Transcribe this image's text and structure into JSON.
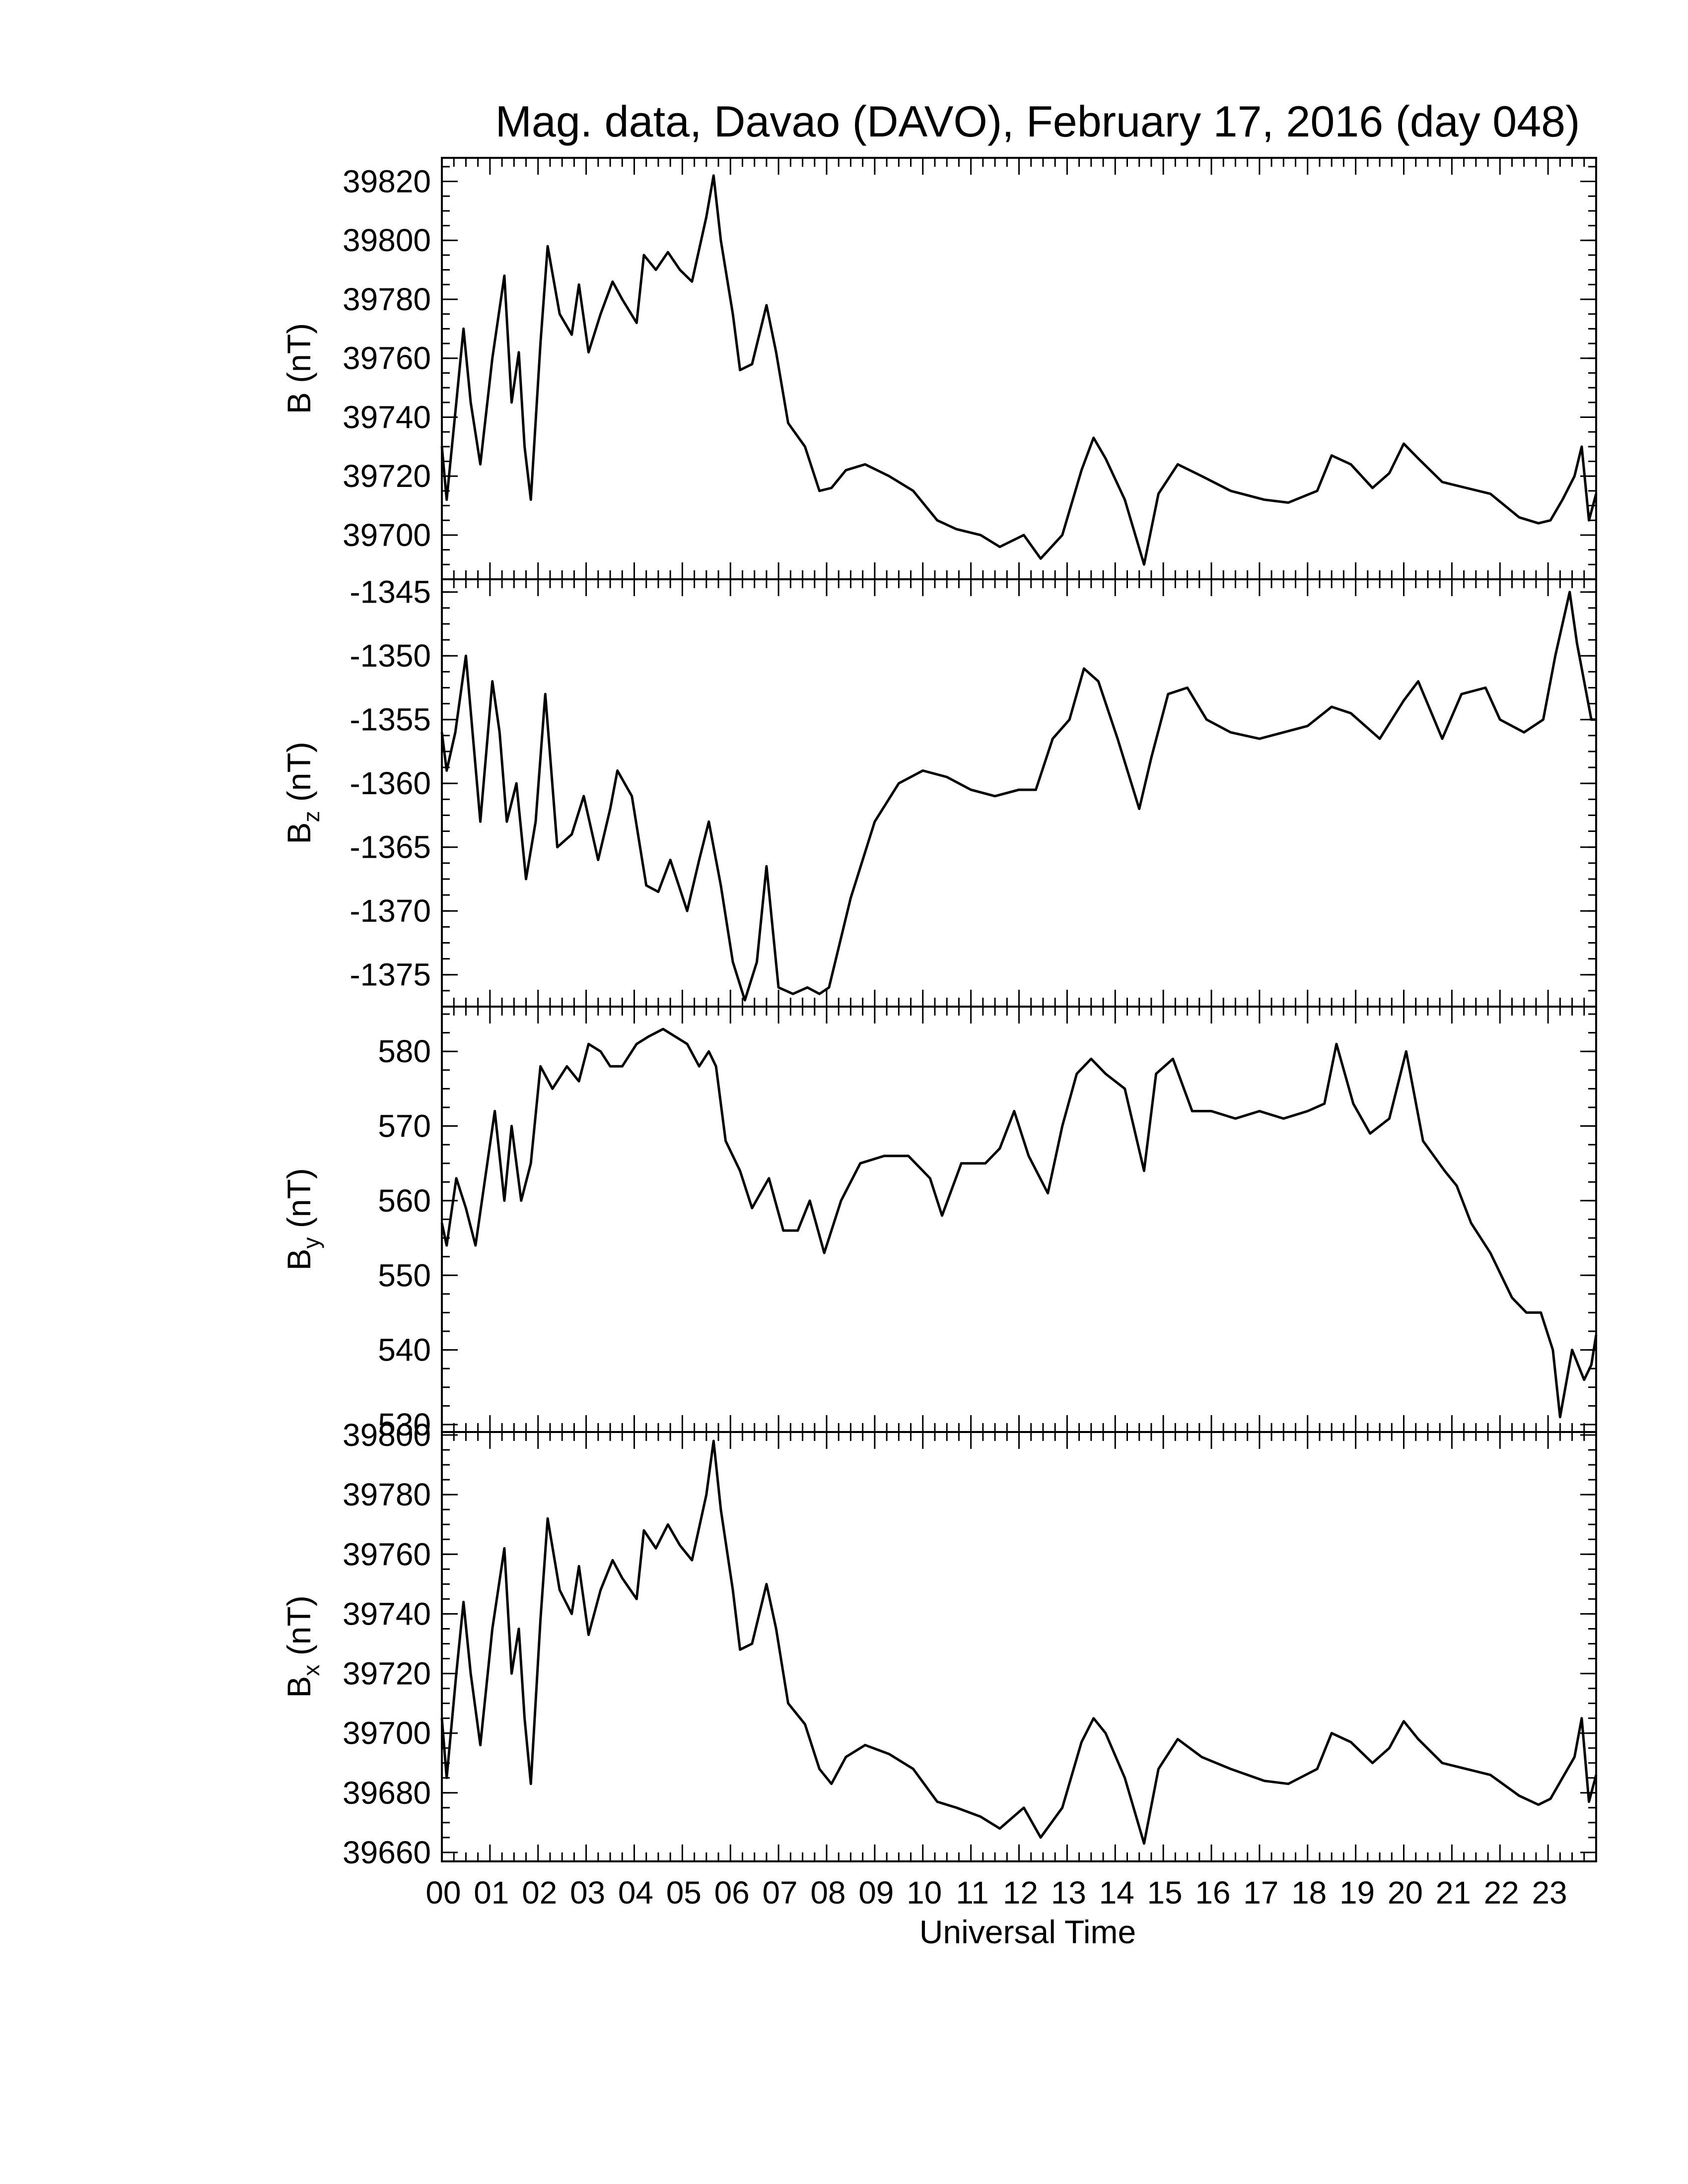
{
  "chart_data": {
    "type": "line",
    "title": "Mag. data, Davao (DAVO), February 17, 2016 (day 048)",
    "xlabel": "Universal Time",
    "x_range": [
      0,
      24
    ],
    "x_tick_labels": [
      "00",
      "01",
      "02",
      "03",
      "04",
      "05",
      "06",
      "07",
      "08",
      "09",
      "10",
      "11",
      "12",
      "13",
      "14",
      "15",
      "16",
      "17",
      "18",
      "19",
      "20",
      "21",
      "22",
      "23"
    ],
    "panels": [
      {
        "id": "B",
        "ylabel": "B (nT)",
        "ylabel_main": "B",
        "ylabel_sub": "",
        "ylabel_unit": " (nT)",
        "ylim": [
          39685,
          39828
        ],
        "yticks": [
          39700,
          39720,
          39740,
          39760,
          39780,
          39800,
          39820
        ],
        "x": [
          0,
          0.1,
          0.3,
          0.45,
          0.6,
          0.8,
          1.05,
          1.3,
          1.45,
          1.6,
          1.72,
          1.85,
          2.05,
          2.2,
          2.45,
          2.7,
          2.85,
          3.05,
          3.3,
          3.55,
          3.75,
          4.05,
          4.2,
          4.45,
          4.7,
          4.95,
          5.2,
          5.5,
          5.65,
          5.8,
          6.05,
          6.2,
          6.45,
          6.75,
          6.95,
          7.2,
          7.55,
          7.85,
          8.1,
          8.4,
          8.8,
          9.3,
          9.8,
          10.3,
          10.7,
          11.2,
          11.6,
          12.1,
          12.45,
          12.9,
          13.3,
          13.55,
          13.8,
          14.2,
          14.6,
          14.9,
          15.3,
          15.8,
          16.4,
          17.1,
          17.6,
          18.2,
          18.5,
          18.9,
          19.35,
          19.7,
          20,
          20.3,
          20.8,
          21.3,
          21.8,
          22.4,
          22.8,
          23.05,
          23.3,
          23.55,
          23.7,
          23.85,
          24
        ],
        "y": [
          39730,
          39712,
          39745,
          39770,
          39745,
          39724,
          39760,
          39788,
          39745,
          39762,
          39730,
          39712,
          39765,
          39798,
          39775,
          39768,
          39785,
          39762,
          39775,
          39786,
          39780,
          39772,
          39795,
          39790,
          39796,
          39790,
          39786,
          39808,
          39822,
          39800,
          39775,
          39756,
          39758,
          39778,
          39762,
          39738,
          39730,
          39715,
          39716,
          39722,
          39724,
          39720,
          39715,
          39705,
          39702,
          39700,
          39696,
          39700,
          39692,
          39700,
          39722,
          39733,
          39726,
          39712,
          39690,
          39714,
          39724,
          39720,
          39715,
          39712,
          39711,
          39715,
          39727,
          39724,
          39716,
          39721,
          39731,
          39726,
          39718,
          39716,
          39714,
          39706,
          39704,
          39705,
          39712,
          39720,
          39730,
          39705,
          39714
        ]
      },
      {
        "id": "Bz",
        "ylabel": "Bz (nT)",
        "ylabel_main": "B",
        "ylabel_sub": "z",
        "ylabel_unit": " (nT)",
        "ylim": [
          -1377.5,
          -1344
        ],
        "yticks": [
          -1375,
          -1370,
          -1365,
          -1360,
          -1355,
          -1350,
          -1345
        ],
        "x": [
          0,
          0.1,
          0.28,
          0.5,
          0.8,
          1.05,
          1.2,
          1.35,
          1.55,
          1.75,
          1.95,
          2.15,
          2.4,
          2.7,
          2.95,
          3.25,
          3.5,
          3.65,
          3.95,
          4.25,
          4.5,
          4.75,
          5.1,
          5.35,
          5.55,
          5.8,
          6.05,
          6.3,
          6.55,
          6.75,
          7,
          7.3,
          7.6,
          7.85,
          8.05,
          8.5,
          9,
          9.5,
          10,
          10.5,
          11,
          11.5,
          12,
          12.35,
          12.7,
          13.05,
          13.35,
          13.65,
          14.05,
          14.5,
          14.75,
          15.1,
          15.5,
          15.9,
          16.4,
          17,
          17.5,
          18,
          18.5,
          18.9,
          19.5,
          20,
          20.3,
          20.8,
          21.2,
          21.7,
          22,
          22.5,
          22.9,
          23.15,
          23.45,
          23.6,
          23.9,
          24
        ],
        "y": [
          -1356,
          -1359,
          -1356,
          -1350,
          -1363,
          -1352,
          -1356,
          -1363,
          -1360,
          -1367.5,
          -1363,
          -1353,
          -1365,
          -1364,
          -1361,
          -1366,
          -1362,
          -1359,
          -1361,
          -1368,
          -1368.5,
          -1366,
          -1370,
          -1366,
          -1363,
          -1368,
          -1374,
          -1377,
          -1374,
          -1366.5,
          -1376,
          -1376.5,
          -1376,
          -1376.5,
          -1376,
          -1369,
          -1363,
          -1360,
          -1359,
          -1359.5,
          -1360.5,
          -1361,
          -1360.5,
          -1360.5,
          -1356.5,
          -1355,
          -1351,
          -1352,
          -1356.5,
          -1362,
          -1358,
          -1353,
          -1352.5,
          -1355,
          -1356,
          -1356.5,
          -1356,
          -1355.5,
          -1354,
          -1354.5,
          -1356.5,
          -1353.5,
          -1352,
          -1356.5,
          -1353,
          -1352.5,
          -1355,
          -1356,
          -1355,
          -1350,
          -1345,
          -1349,
          -1355,
          -1355
        ]
      },
      {
        "id": "By",
        "ylabel": "By (nT)",
        "ylabel_main": "B",
        "ylabel_sub": "y",
        "ylabel_unit": " (nT)",
        "ylim": [
          529,
          586
        ],
        "yticks": [
          530,
          540,
          550,
          560,
          570,
          580
        ],
        "x": [
          0,
          0.1,
          0.3,
          0.5,
          0.7,
          0.9,
          1.1,
          1.3,
          1.45,
          1.65,
          1.85,
          2.05,
          2.3,
          2.6,
          2.85,
          3.05,
          3.3,
          3.5,
          3.75,
          4.05,
          4.3,
          4.6,
          4.85,
          5.1,
          5.35,
          5.55,
          5.7,
          5.9,
          6.2,
          6.45,
          6.8,
          7.1,
          7.4,
          7.65,
          7.95,
          8.3,
          8.7,
          9.2,
          9.7,
          10.15,
          10.4,
          10.8,
          11.3,
          11.6,
          11.9,
          12.2,
          12.6,
          12.9,
          13.2,
          13.5,
          13.8,
          14.2,
          14.6,
          14.85,
          15.2,
          15.6,
          16,
          16.5,
          17,
          17.5,
          18,
          18.35,
          18.6,
          18.95,
          19.3,
          19.7,
          20.05,
          20.4,
          20.85,
          21.1,
          21.4,
          21.8,
          22.25,
          22.55,
          22.85,
          23.1,
          23.25,
          23.5,
          23.75,
          23.9,
          24
        ],
        "y": [
          557,
          554,
          563,
          559,
          554,
          563,
          572,
          560,
          570,
          560,
          565,
          578,
          575,
          578,
          576,
          581,
          580,
          578,
          578,
          581,
          582,
          583,
          582,
          581,
          578,
          580,
          578,
          568,
          564,
          559,
          563,
          556,
          556,
          560,
          553,
          560,
          565,
          566,
          566,
          563,
          558,
          565,
          565,
          567,
          572,
          566,
          561,
          570,
          577,
          579,
          577,
          575,
          564,
          577,
          579,
          572,
          572,
          571,
          572,
          571,
          572,
          573,
          581,
          573,
          569,
          571,
          580,
          568,
          564,
          562,
          557,
          553,
          547,
          545,
          545,
          540,
          531,
          540,
          536,
          538,
          542
        ]
      },
      {
        "id": "Bx",
        "ylabel": "Bx (nT)",
        "ylabel_main": "B",
        "ylabel_sub": "x",
        "ylabel_unit": " (nT)",
        "ylim": [
          39657,
          39801
        ],
        "yticks": [
          39660,
          39680,
          39700,
          39720,
          39740,
          39760,
          39780,
          39800
        ],
        "x": [
          0,
          0.1,
          0.3,
          0.45,
          0.6,
          0.8,
          1.05,
          1.3,
          1.45,
          1.6,
          1.72,
          1.85,
          2.05,
          2.2,
          2.45,
          2.7,
          2.85,
          3.05,
          3.3,
          3.55,
          3.75,
          4.05,
          4.2,
          4.45,
          4.7,
          4.95,
          5.2,
          5.5,
          5.65,
          5.8,
          6.05,
          6.2,
          6.45,
          6.75,
          6.95,
          7.2,
          7.55,
          7.85,
          8.1,
          8.4,
          8.8,
          9.3,
          9.8,
          10.3,
          10.7,
          11.2,
          11.6,
          12.1,
          12.45,
          12.9,
          13.3,
          13.55,
          13.8,
          14.2,
          14.6,
          14.9,
          15.3,
          15.8,
          16.4,
          17.1,
          17.6,
          18.2,
          18.5,
          18.9,
          19.35,
          19.7,
          20,
          20.3,
          20.8,
          21.3,
          21.8,
          22.4,
          22.8,
          23.05,
          23.3,
          23.55,
          23.7,
          23.85,
          24
        ],
        "y": [
          39705,
          39685,
          39720,
          39744,
          39720,
          39696,
          39735,
          39762,
          39720,
          39735,
          39705,
          39683,
          39738,
          39772,
          39748,
          39740,
          39756,
          39733,
          39748,
          39758,
          39752,
          39745,
          39768,
          39762,
          39770,
          39763,
          39758,
          39780,
          39798,
          39775,
          39748,
          39728,
          39730,
          39750,
          39735,
          39710,
          39703,
          39688,
          39683,
          39692,
          39696,
          39693,
          39688,
          39677,
          39675,
          39672,
          39668,
          39675,
          39665,
          39675,
          39697,
          39705,
          39700,
          39685,
          39663,
          39688,
          39698,
          39692,
          39688,
          39684,
          39683,
          39688,
          39700,
          39697,
          39690,
          39695,
          39704,
          39698,
          39690,
          39688,
          39686,
          39679,
          39676,
          39678,
          39685,
          39692,
          39705,
          39677,
          39686
        ]
      }
    ]
  }
}
